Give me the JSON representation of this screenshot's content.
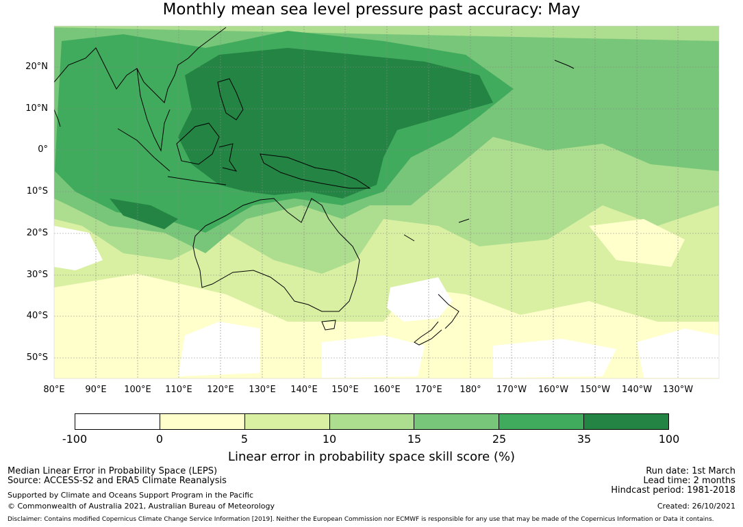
{
  "title": "Monthly mean sea level pressure past accuracy: May",
  "map": {
    "lat_labels": [
      "20°N",
      "10°N",
      "0°",
      "10°S",
      "20°S",
      "30°S",
      "40°S",
      "50°S"
    ],
    "lon_labels": [
      "80°E",
      "90°E",
      "100°E",
      "110°E",
      "120°E",
      "130°E",
      "140°E",
      "150°E",
      "160°E",
      "170°E",
      "180°",
      "170°W",
      "160°W",
      "150°W",
      "140°W",
      "130°W"
    ],
    "colors": {
      "class_neg100_0": "#ffffff",
      "class_0_5": "#ffffcc",
      "class_5_10": "#d9f0a3",
      "class_10_15": "#addd8e",
      "class_15_25": "#78c679",
      "class_25_35": "#41ab5d",
      "class_35_100": "#238443",
      "coast": "#000000"
    }
  },
  "colorbar": {
    "ticks": [
      "-100",
      "0",
      "5",
      "10",
      "15",
      "25",
      "35",
      "100"
    ],
    "label": "Linear error in probability space skill score (%)"
  },
  "footer": {
    "left_line1": "Median Linear Error in Probability Space (LEPS)",
    "left_line2": "Source: ACCESS-S2 and ERA5 Climate Reanalysis",
    "left_line3": "Supported by Climate and Oceans Support Program in the Pacific",
    "left_line4": "© Commonwealth of Australia 2021, Australian Bureau of Meteorology",
    "right_line1": "Run date: 1st March",
    "right_line2": "Lead time: 2 months",
    "right_line3": "Hindcast period: 1981-2018",
    "right_line4": "Created: 26/10/2021",
    "disclaimer": "Disclaimer: Contains modified Copernicus Climate Change Service Information [2019]. Neither the European Commission nor ECMWF is responsible for any use that may be made of the Copernicus Information or Data it contains."
  }
}
